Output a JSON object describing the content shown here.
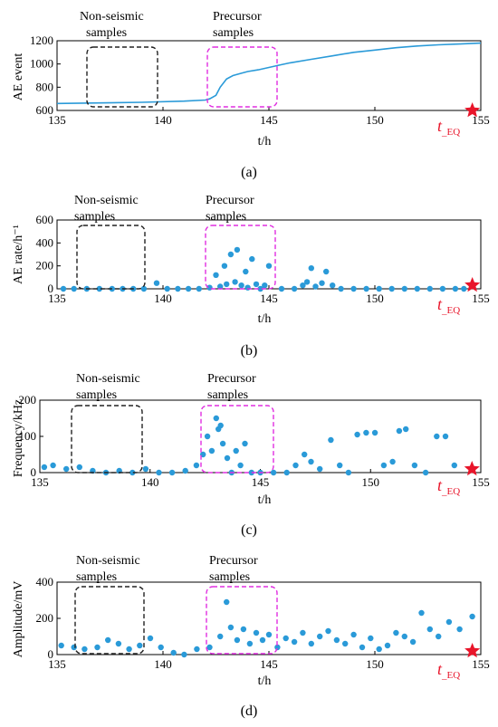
{
  "colors": {
    "series": "#2a9ad8",
    "star": "#e8152a",
    "precursor_box": "#e02ee0",
    "nonseismic_box": "#222222",
    "axis": "#000000"
  },
  "annotations": {
    "nonseismic_line1": "Non-seismic",
    "nonseismic_line2": "samples",
    "precursor_line1": "Precursor",
    "precursor_line2": "samples",
    "teq_main": "t",
    "teq_sub": "_EQ"
  },
  "chart_data": [
    {
      "id": "a",
      "type": "line",
      "caption": "(a)",
      "ylabel": "AE event",
      "xlabel": "t/h",
      "xlim": [
        135,
        155
      ],
      "ylim": [
        600,
        1200
      ],
      "xticks": [
        "135",
        "140",
        "145",
        "150",
        "155"
      ],
      "yticks": [
        "600",
        "800",
        "1000",
        "1200"
      ],
      "series": [
        {
          "x": [
            135,
            137,
            139,
            141,
            142.0,
            142.2,
            142.5,
            142.7,
            143.0,
            143.3,
            143.7,
            144.0,
            144.5,
            145.0,
            145.5,
            146.0,
            147.0,
            148.0,
            149.0,
            150.0,
            151.0,
            152.0,
            153.0,
            154.0,
            155
          ],
          "values": [
            660,
            665,
            670,
            680,
            690,
            700,
            730,
            800,
            870,
            900,
            920,
            935,
            950,
            970,
            990,
            1010,
            1040,
            1070,
            1100,
            1120,
            1140,
            1155,
            1165,
            1172,
            1180
          ]
        }
      ]
    },
    {
      "id": "b",
      "type": "scatter",
      "caption": "(b)",
      "ylabel": "AE rate/h⁻¹",
      "xlabel": "t/h",
      "xlim": [
        135,
        155
      ],
      "ylim": [
        0,
        600
      ],
      "xticks": [
        "135",
        "140",
        "145",
        "150",
        "155"
      ],
      "yticks": [
        "0",
        "200",
        "400",
        "600"
      ],
      "series": [
        {
          "x": [
            135.3,
            135.8,
            136.4,
            137.0,
            137.6,
            138.1,
            138.6,
            139.1,
            139.7,
            140.2,
            140.7,
            141.2,
            141.7,
            142.2,
            142.5,
            142.7,
            142.9,
            143.0,
            143.2,
            143.4,
            143.5,
            143.7,
            143.9,
            144.0,
            144.2,
            144.4,
            144.6,
            144.8,
            145.0,
            145.6,
            146.2,
            146.6,
            146.8,
            147.0,
            147.2,
            147.5,
            147.7,
            148.0,
            148.4,
            149.0,
            149.6,
            150.2,
            150.8,
            151.4,
            152.0,
            152.6,
            153.2,
            153.8,
            154.2
          ],
          "values": [
            0,
            0,
            0,
            0,
            0,
            0,
            0,
            0,
            50,
            0,
            0,
            0,
            0,
            10,
            120,
            20,
            200,
            40,
            300,
            60,
            340,
            30,
            150,
            10,
            260,
            40,
            0,
            30,
            200,
            0,
            0,
            30,
            60,
            180,
            20,
            50,
            150,
            30,
            0,
            0,
            0,
            0,
            0,
            0,
            0,
            0,
            0,
            0,
            0
          ]
        }
      ]
    },
    {
      "id": "c",
      "type": "scatter",
      "caption": "(c)",
      "ylabel": "Frequency/kHz",
      "xlabel": "t/h",
      "xlim": [
        135,
        155
      ],
      "ylim": [
        0,
        200
      ],
      "xticks": [
        "135",
        "140",
        "145",
        "150",
        "155"
      ],
      "yticks": [
        "0",
        "100",
        "200"
      ],
      "series": [
        {
          "x": [
            135.2,
            135.6,
            136.2,
            136.8,
            137.4,
            138.0,
            138.6,
            139.2,
            139.8,
            140.4,
            141.0,
            141.6,
            142.1,
            142.4,
            142.6,
            142.8,
            143.0,
            143.1,
            143.2,
            143.3,
            143.5,
            143.7,
            143.9,
            144.1,
            144.3,
            144.6,
            145.0,
            145.6,
            146.2,
            146.6,
            147.0,
            147.3,
            147.7,
            148.2,
            148.6,
            149.0,
            149.4,
            149.8,
            150.2,
            150.6,
            151.0,
            151.3,
            151.6,
            152.0,
            152.5,
            153.0,
            153.4,
            153.8
          ],
          "values": [
            15,
            20,
            10,
            15,
            5,
            0,
            5,
            0,
            10,
            0,
            0,
            5,
            20,
            50,
            100,
            60,
            150,
            120,
            130,
            80,
            40,
            0,
            60,
            20,
            80,
            0,
            0,
            0,
            0,
            20,
            50,
            30,
            10,
            90,
            20,
            0,
            105,
            110,
            110,
            20,
            30,
            115,
            120,
            20,
            0,
            100,
            100,
            20
          ]
        }
      ]
    },
    {
      "id": "d",
      "type": "scatter",
      "caption": "(d)",
      "ylabel": "Amplitude/mV",
      "xlabel": "t/h",
      "xlim": [
        135,
        155
      ],
      "ylim": [
        0,
        400
      ],
      "xticks": [
        "135",
        "140",
        "145",
        "150",
        "155"
      ],
      "yticks": [
        "0",
        "200",
        "400"
      ],
      "series": [
        {
          "x": [
            135.2,
            135.8,
            136.3,
            136.9,
            137.4,
            137.9,
            138.4,
            138.9,
            139.4,
            139.9,
            140.5,
            141.0,
            141.6,
            142.2,
            142.7,
            143.0,
            143.2,
            143.5,
            143.8,
            144.1,
            144.4,
            144.7,
            145.0,
            145.4,
            145.8,
            146.2,
            146.6,
            147.0,
            147.4,
            147.8,
            148.2,
            148.6,
            149.0,
            149.4,
            149.8,
            150.2,
            150.6,
            151.0,
            151.4,
            151.8,
            152.2,
            152.6,
            153.0,
            153.5,
            154.0,
            154.6
          ],
          "values": [
            50,
            40,
            30,
            40,
            80,
            60,
            30,
            50,
            90,
            40,
            10,
            0,
            30,
            40,
            100,
            290,
            150,
            80,
            140,
            60,
            120,
            80,
            110,
            40,
            90,
            70,
            120,
            60,
            100,
            130,
            80,
            60,
            110,
            40,
            90,
            30,
            50,
            120,
            100,
            70,
            230,
            140,
            100,
            180,
            140,
            210
          ]
        }
      ]
    }
  ]
}
